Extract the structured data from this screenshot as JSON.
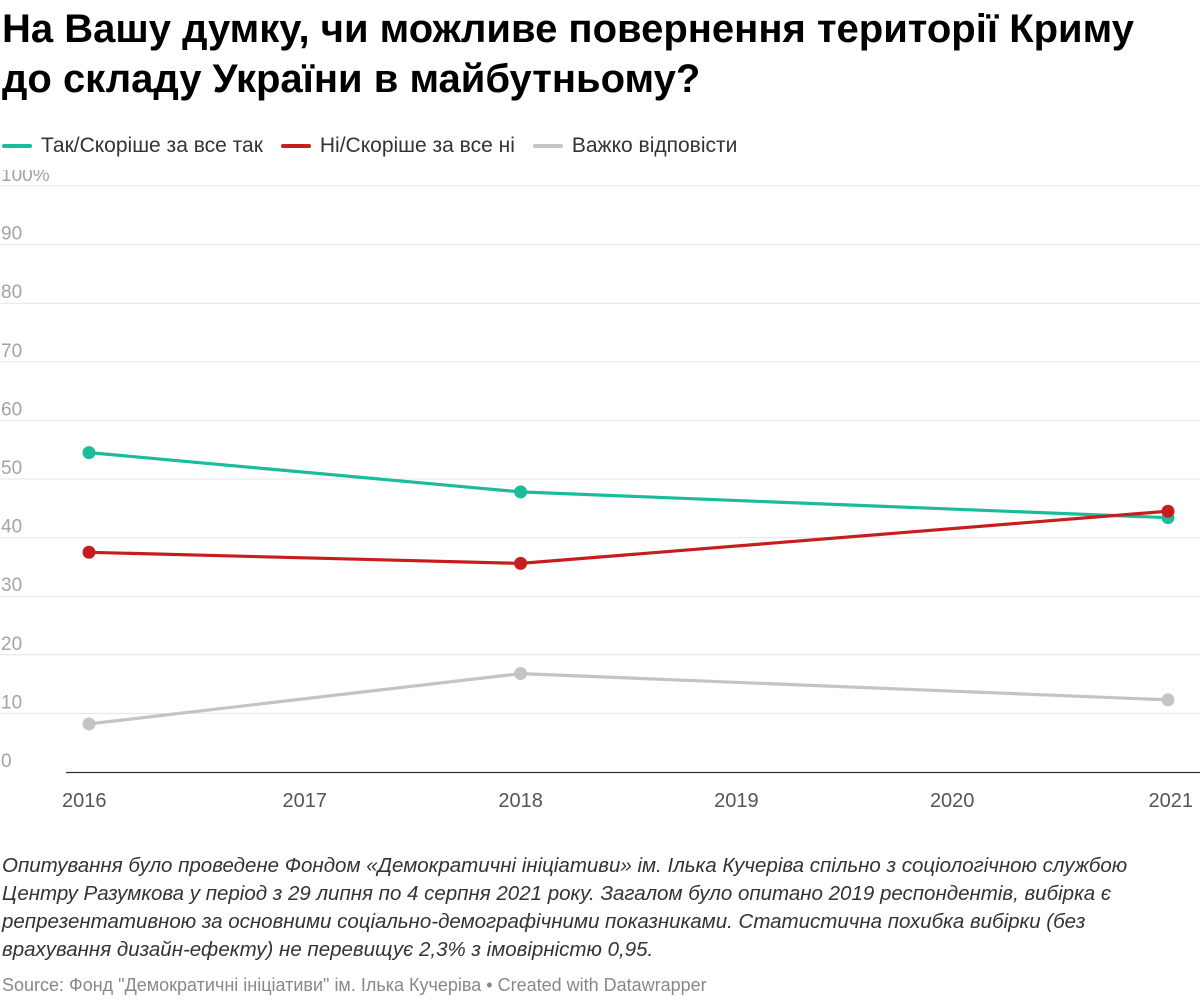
{
  "title": "На Вашу думку, чи можливе повернення території Криму до складу України в майбутньому?",
  "notes": "Опитування було проведене Фондом «Демократичні ініціативи» ім. Ілька Кучеріва спільно з соціологічною службою Центру Разумкова у період з 29 липня по 4 серпня 2021 року. Загалом було опитано 2019 респондентів, вибірка є репрезентативною за основними соціально-демографічними показниками. Статистична похибка вибірки (без врахування дизайн-ефекту) не перевищує 2,3% з імовірністю 0,95.",
  "footer": {
    "source": "Source: Фонд \"Демократичні ініціативи\" ім. Ілька Кучеріва",
    "separator": "•",
    "credit": "Created with Datawrapper"
  },
  "chart_data": {
    "type": "line",
    "title": "На Вашу думку, чи можливе повернення території Криму до складу України в майбутньому?",
    "xlabel": "",
    "ylabel": "",
    "x": [
      "2016",
      "2017",
      "2018",
      "2019",
      "2020",
      "2021"
    ],
    "x_ticks": [
      "2016",
      "2017",
      "2018",
      "2019",
      "2020",
      "2021"
    ],
    "ylim": [
      0,
      100
    ],
    "y_ticks": [
      "0",
      "10",
      "20",
      "30",
      "40",
      "50",
      "60",
      "70",
      "80",
      "90",
      "100%"
    ],
    "y_tick_values": [
      0,
      10,
      20,
      30,
      40,
      50,
      60,
      70,
      80,
      90,
      100
    ],
    "grid": true,
    "legend_position": "top-left",
    "series": [
      {
        "name": "Так/Скоріше за все так",
        "color": "#1abc9c",
        "points": [
          {
            "x": "2016",
            "y": 54.5
          },
          {
            "x": "2018",
            "y": 47.8
          },
          {
            "x": "2021",
            "y": 43.4
          }
        ]
      },
      {
        "name": "Ні/Скоріше за все ні",
        "color": "#c71e1d",
        "points": [
          {
            "x": "2016",
            "y": 37.5
          },
          {
            "x": "2018",
            "y": 35.6
          },
          {
            "x": "2021",
            "y": 44.5
          }
        ]
      },
      {
        "name": "Важко відповісти",
        "color": "#c4c4c4",
        "points": [
          {
            "x": "2016",
            "y": 8.2
          },
          {
            "x": "2018",
            "y": 16.8
          },
          {
            "x": "2021",
            "y": 12.3
          }
        ]
      }
    ]
  }
}
